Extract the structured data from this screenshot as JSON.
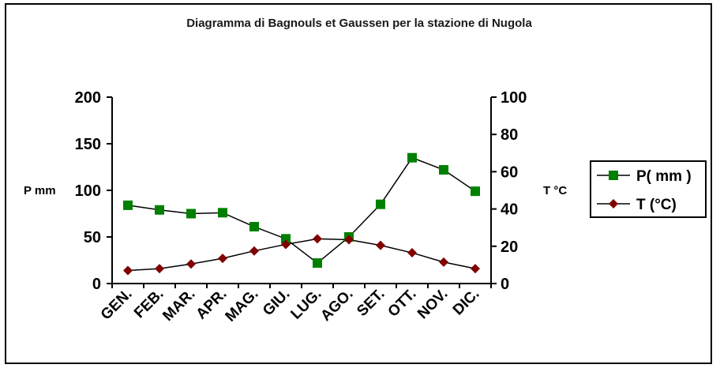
{
  "chart_data": {
    "type": "line",
    "title": "Diagramma di Bagnouls et Gaussen per la stazione di Nugola",
    "categories": [
      "GEN.",
      "FEB.",
      "MAR.",
      "APR.",
      "MAG.",
      "GIU.",
      "LUG.",
      "AGO.",
      "SET.",
      "OTT.",
      "NOV.",
      "DIC."
    ],
    "ylabel": "P mm",
    "ylabel_right": "T °C",
    "ylim": [
      0,
      200
    ],
    "ylim_right": [
      0,
      100
    ],
    "yticks": [
      "0",
      "50",
      "100",
      "150",
      "200"
    ],
    "yticks_right": [
      "0",
      "20",
      "40",
      "60",
      "80",
      "100"
    ],
    "grid": false,
    "legend_position": "right",
    "series": [
      {
        "name": "P( mm )",
        "axis": "left",
        "color": "#008000",
        "marker": "square",
        "values": [
          84,
          79,
          75,
          76,
          61,
          48,
          22,
          50,
          85,
          135,
          122,
          99
        ]
      },
      {
        "name": "T (°C)",
        "axis": "right",
        "color": "#800000",
        "marker": "diamond",
        "values": [
          7,
          8,
          10.5,
          13.5,
          17.5,
          21,
          24,
          23.5,
          20.5,
          16.5,
          11.5,
          8
        ]
      }
    ]
  }
}
